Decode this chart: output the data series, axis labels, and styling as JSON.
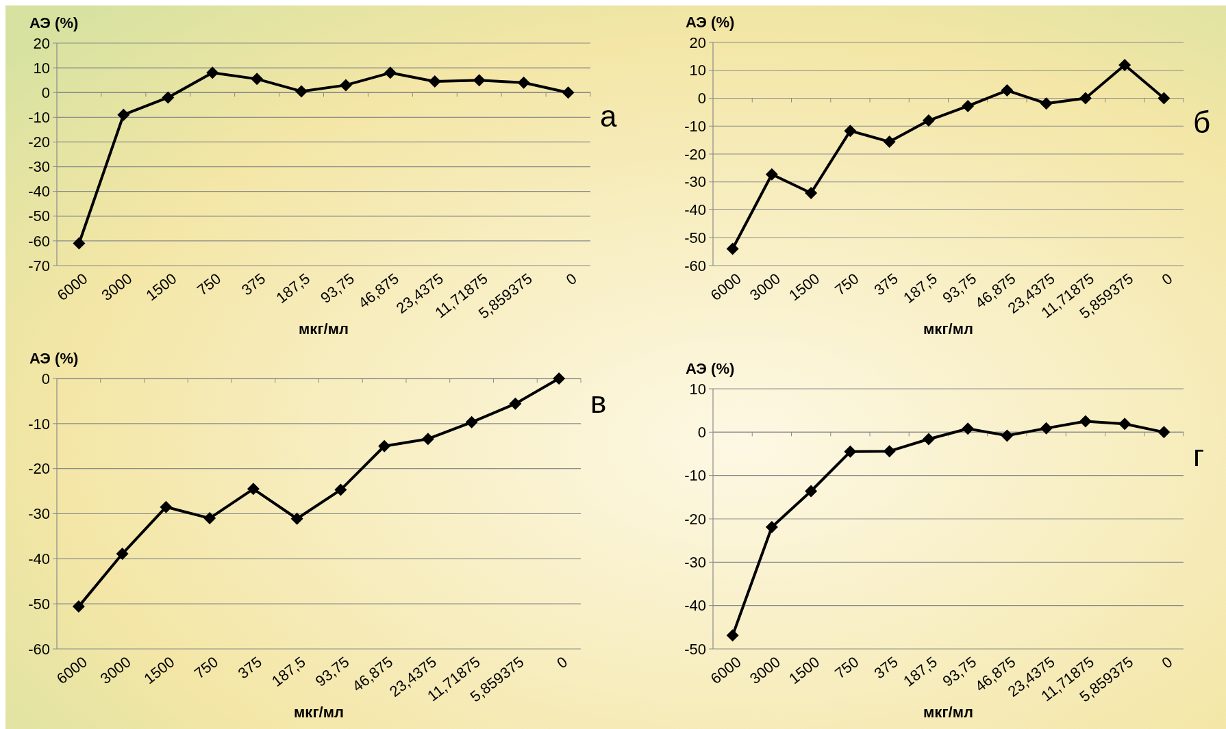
{
  "chart_data": [
    {
      "type": "line",
      "ylabel": "АЭ (%)",
      "xlabel": "мкг/мл",
      "annotations": [
        "а"
      ],
      "categories": [
        "6000",
        "3000",
        "1500",
        "750",
        "375",
        "187,5",
        "93,75",
        "46,875",
        "23,4375",
        "11,71875",
        "5,859375",
        "0"
      ],
      "series": [
        {
          "color": "#000000",
          "values": [
            -61,
            -9,
            -2,
            8,
            5.5,
            0.5,
            3,
            8,
            4.5,
            5,
            4,
            0
          ]
        }
      ],
      "ylim": [
        -70,
        20
      ],
      "yticks": [
        -70,
        -60,
        -50,
        -40,
        -30,
        -20,
        -10,
        0,
        10,
        20
      ],
      "grid": "y",
      "marker": "diamond"
    },
    {
      "type": "line",
      "ylabel": "АЭ (%)",
      "xlabel": "мкг/мл",
      "annotations": [
        "б"
      ],
      "categories": [
        "6000",
        "3000",
        "1500",
        "750",
        "375",
        "187,5",
        "93,75",
        "46,875",
        "23,4375",
        "11,71875",
        "5,859375",
        "0"
      ],
      "series": [
        {
          "color": "#000000",
          "values": [
            -54,
            -27.3,
            -34,
            -11.7,
            -15.6,
            -8,
            -2.8,
            2.8,
            -1.9,
            0,
            11.9,
            0
          ]
        }
      ],
      "ylim": [
        -60,
        20
      ],
      "yticks": [
        -60,
        -50,
        -40,
        -30,
        -20,
        -10,
        0,
        10,
        20
      ],
      "grid": "y",
      "marker": "diamond"
    },
    {
      "type": "line",
      "ylabel": "АЭ (%)",
      "xlabel": "мкг/мл",
      "annotations": [
        "в"
      ],
      "categories": [
        "6000",
        "3000",
        "1500",
        "750",
        "375",
        "187,5",
        "93,75",
        "46,875",
        "23,4375",
        "11,71875",
        "5,859375",
        "0"
      ],
      "series": [
        {
          "color": "#000000",
          "values": [
            -50.6,
            -38.9,
            -28.5,
            -31,
            -24.5,
            -31.1,
            -24.7,
            -15,
            -13.4,
            -9.7,
            -5.6,
            0
          ]
        }
      ],
      "ylim": [
        -60,
        0
      ],
      "yticks": [
        -60,
        -50,
        -40,
        -30,
        -20,
        -10,
        0
      ],
      "grid": "y",
      "marker": "diamond"
    },
    {
      "type": "line",
      "ylabel": "АЭ (%)",
      "xlabel": "мкг/мл",
      "annotations": [
        "г"
      ],
      "categories": [
        "6000",
        "3000",
        "1500",
        "750",
        "375",
        "187,5",
        "93,75",
        "46,875",
        "23,4375",
        "11,71875",
        "5,859375",
        "0"
      ],
      "series": [
        {
          "color": "#000000",
          "values": [
            -46.9,
            -21.9,
            -13.6,
            -4.5,
            -4.4,
            -1.6,
            0.8,
            -0.8,
            0.9,
            2.5,
            1.9,
            0
          ]
        }
      ],
      "ylim": [
        -50,
        10
      ],
      "yticks": [
        -50,
        -40,
        -30,
        -20,
        -10,
        0,
        10
      ],
      "grid": "y",
      "marker": "diamond"
    }
  ]
}
